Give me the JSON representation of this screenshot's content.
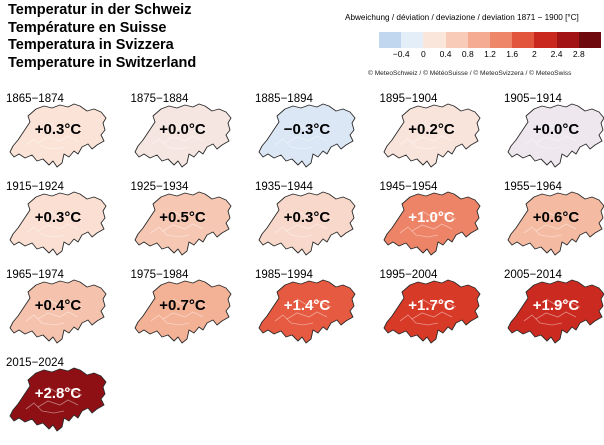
{
  "titles": [
    "Temperatur in der Schweiz",
    "Température en Suisse",
    "Temperatura in Svizzera",
    "Temperature in Switzerland"
  ],
  "legend": {
    "caption": "Abweichung / déviation / deviazione / deviation 1871 − 1900 [°C]",
    "bins": [
      {
        "color": "#c0d7ef"
      },
      {
        "color": "#e4eef8"
      },
      {
        "color": "#fbe6dc"
      },
      {
        "color": "#f8cbb8"
      },
      {
        "color": "#f4ab91"
      },
      {
        "color": "#ee866a"
      },
      {
        "color": "#e2563e"
      },
      {
        "color": "#c9281e"
      },
      {
        "color": "#a11314"
      },
      {
        "color": "#6e0a0d"
      }
    ],
    "ticks": [
      "−0.4",
      "0",
      "0.4",
      "0.8",
      "1.2",
      "1.6",
      "2",
      "2.4",
      "2.8"
    ],
    "copyright": "© MeteoSchweiz / © MétéoSuisse / © MeteoSvizzera / © MeteoSwiss"
  },
  "chart_data": {
    "type": "choropleth",
    "region": "Switzerland",
    "unit": "°C",
    "panels": [
      {
        "period": "1865−1874",
        "value": 0.3,
        "label": "+0.3°C",
        "color": "#fbe3d8",
        "text": "dark"
      },
      {
        "period": "1875−1884",
        "value": 0.0,
        "label": "+0.0°C",
        "color": "#f6e6e2",
        "text": "dark"
      },
      {
        "period": "1885−1894",
        "value": -0.3,
        "label": "−0.3°C",
        "color": "#dbe7f4",
        "text": "dark"
      },
      {
        "period": "1895−1904",
        "value": 0.2,
        "label": "+0.2°C",
        "color": "#f9e4dc",
        "text": "dark"
      },
      {
        "period": "1905−1914",
        "value": 0.0,
        "label": "+0.0°C",
        "color": "#eee7ee",
        "text": "dark"
      },
      {
        "period": "1915−1924",
        "value": 0.3,
        "label": "+0.3°C",
        "color": "#fadfd2",
        "text": "dark"
      },
      {
        "period": "1925−1934",
        "value": 0.5,
        "label": "+0.5°C",
        "color": "#f6c8b4",
        "text": "dark"
      },
      {
        "period": "1935−1944",
        "value": 0.3,
        "label": "+0.3°C",
        "color": "#f8d8ca",
        "text": "dark"
      },
      {
        "period": "1945−1954",
        "value": 1.0,
        "label": "+1.0°C",
        "color": "#ed8468",
        "text": "light"
      },
      {
        "period": "1955−1964",
        "value": 0.6,
        "label": "+0.6°C",
        "color": "#f4bba2",
        "text": "dark"
      },
      {
        "period": "1965−1974",
        "value": 0.4,
        "label": "+0.4°C",
        "color": "#f5c3ad",
        "text": "dark"
      },
      {
        "period": "1975−1984",
        "value": 0.7,
        "label": "+0.7°C",
        "color": "#f3b196",
        "text": "dark"
      },
      {
        "period": "1985−1994",
        "value": 1.4,
        "label": "+1.4°C",
        "color": "#e55a40",
        "text": "light"
      },
      {
        "period": "1995−2004",
        "value": 1.7,
        "label": "+1.7°C",
        "color": "#d83a28",
        "text": "light"
      },
      {
        "period": "2005−2014",
        "value": 1.9,
        "label": "+1.9°C",
        "color": "#cb2a20",
        "text": "light"
      },
      {
        "period": "2015−2024",
        "value": 2.8,
        "label": "+2.8°C",
        "color": "#8e1014",
        "text": "light"
      }
    ]
  }
}
